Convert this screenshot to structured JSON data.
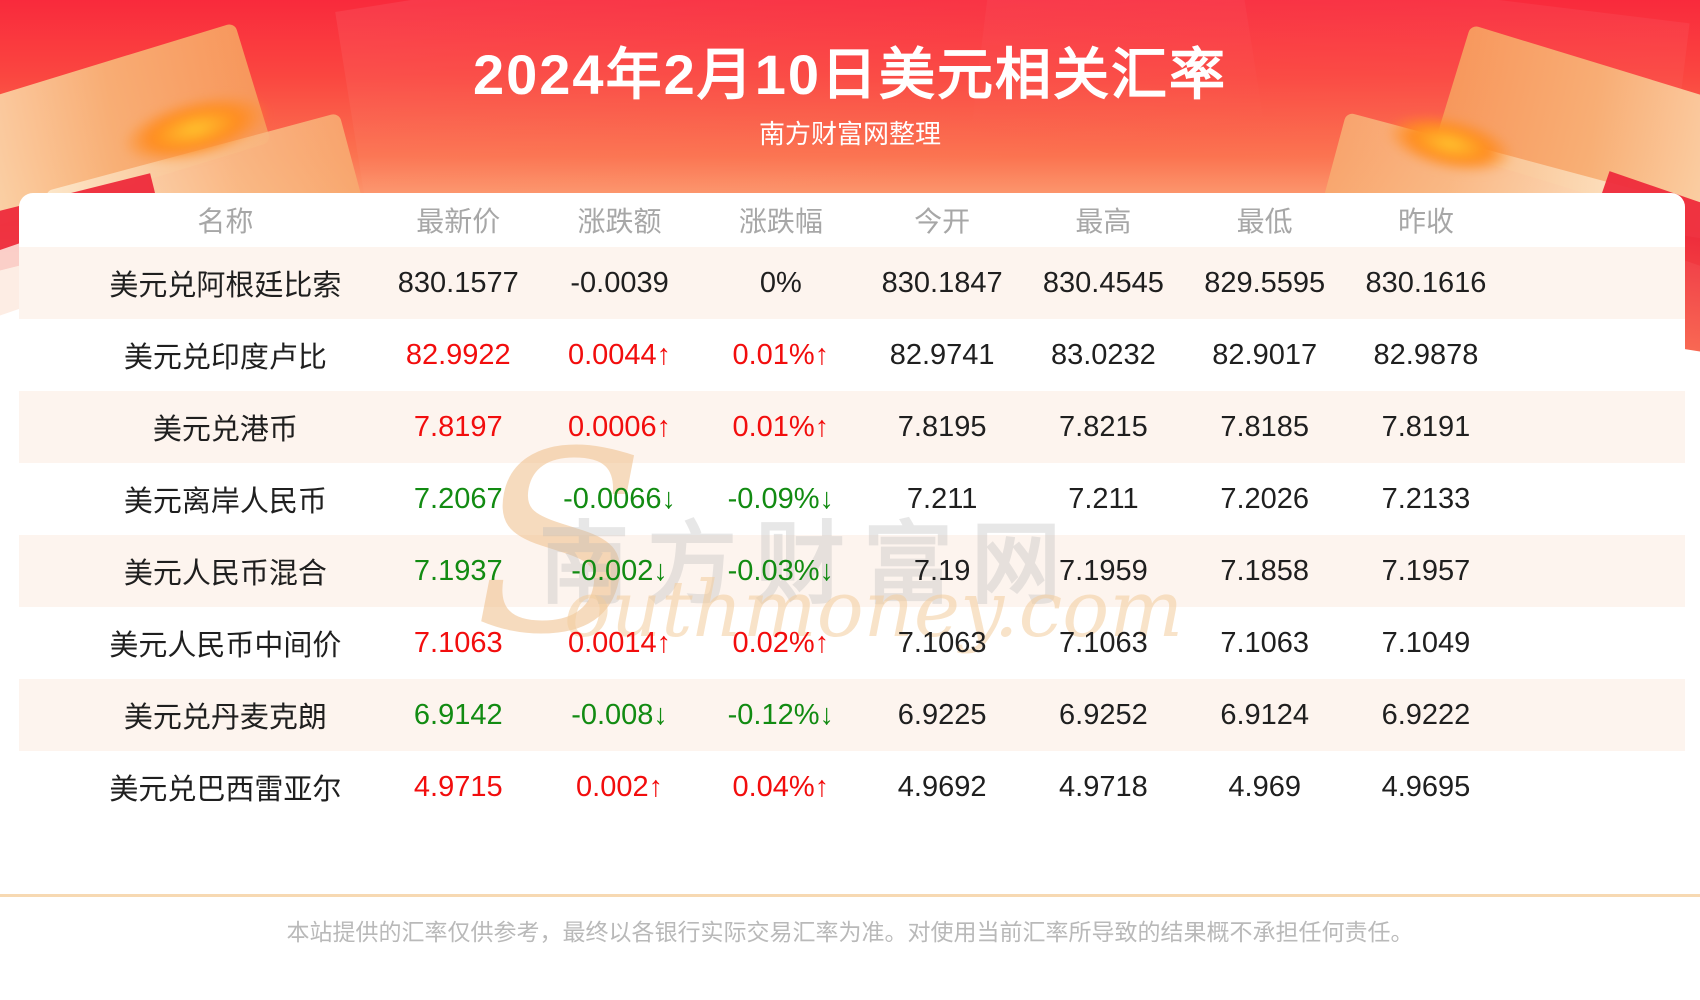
{
  "banner": {
    "title": "2024年2月10日美元相关汇率",
    "subtitle": "南方财富网整理"
  },
  "watermark": {
    "big_s": "S",
    "cn_text": "南方财富网",
    "en_text": "outhmoney.com"
  },
  "colors": {
    "up": "#f20d0d",
    "down": "#128b12",
    "banner_red": "#f92a3c",
    "row_stripe": "#fdf4ee",
    "header_gray": "#a7a7a7"
  },
  "chart_data": {
    "type": "table",
    "title": "2024年2月10日美元相关汇率",
    "subtitle": "南方财富网整理",
    "columns": [
      "名称",
      "最新价",
      "涨跌额",
      "涨跌幅",
      "今开",
      "最高",
      "最低",
      "昨收"
    ],
    "rows": [
      {
        "name": "美元兑阿根廷比索",
        "last": "830.1577",
        "change": "-0.0039",
        "pct": "0%",
        "open": "830.1847",
        "high": "830.4545",
        "low": "829.5595",
        "prev": "830.1616",
        "trend": "flat"
      },
      {
        "name": "美元兑印度卢比",
        "last": "82.9922",
        "change": "0.0044↑",
        "pct": "0.01%↑",
        "open": "82.9741",
        "high": "83.0232",
        "low": "82.9017",
        "prev": "82.9878",
        "trend": "up"
      },
      {
        "name": "美元兑港币",
        "last": "7.8197",
        "change": "0.0006↑",
        "pct": "0.01%↑",
        "open": "7.8195",
        "high": "7.8215",
        "low": "7.8185",
        "prev": "7.8191",
        "trend": "up"
      },
      {
        "name": "美元离岸人民币",
        "last": "7.2067",
        "change": "-0.0066↓",
        "pct": "-0.09%↓",
        "open": "7.211",
        "high": "7.211",
        "low": "7.2026",
        "prev": "7.2133",
        "trend": "down"
      },
      {
        "name": "美元人民币混合",
        "last": "7.1937",
        "change": "-0.002↓",
        "pct": "-0.03%↓",
        "open": "7.19",
        "high": "7.1959",
        "low": "7.1858",
        "prev": "7.1957",
        "trend": "down"
      },
      {
        "name": "美元人民币中间价",
        "last": "7.1063",
        "change": "0.0014↑",
        "pct": "0.02%↑",
        "open": "7.1063",
        "high": "7.1063",
        "low": "7.1063",
        "prev": "7.1049",
        "trend": "up"
      },
      {
        "name": "美元兑丹麦克朗",
        "last": "6.9142",
        "change": "-0.008↓",
        "pct": "-0.12%↓",
        "open": "6.9225",
        "high": "6.9252",
        "low": "6.9124",
        "prev": "6.9222",
        "trend": "down"
      },
      {
        "name": "美元兑巴西雷亚尔",
        "last": "4.9715",
        "change": "0.002↑",
        "pct": "0.04%↑",
        "open": "4.9692",
        "high": "4.9718",
        "low": "4.969",
        "prev": "4.9695",
        "trend": "up"
      }
    ]
  },
  "footer": {
    "disclaimer": "本站提供的汇率仅供参考，最终以各银行实际交易汇率为准。对使用当前汇率所导致的结果概不承担任何责任。"
  }
}
